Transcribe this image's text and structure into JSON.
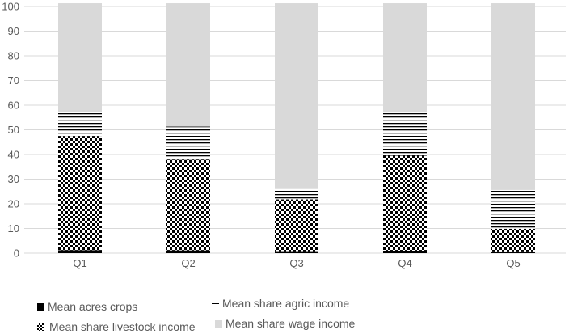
{
  "chart_data": {
    "type": "bar",
    "stacked": true,
    "title": "",
    "xlabel": "",
    "ylabel": "",
    "ylim": [
      0,
      100
    ],
    "yticks": [
      0,
      10,
      20,
      30,
      40,
      50,
      60,
      70,
      80,
      90,
      100
    ],
    "grid": true,
    "legend_position": "bottom",
    "categories": [
      "Q1",
      "Q2",
      "Q3",
      "Q4",
      "Q5"
    ],
    "series": [
      {
        "name": "Mean acres crops",
        "pattern": "solid-black",
        "values": [
          1.2,
          1.1,
          0.8,
          1.0,
          0.7
        ]
      },
      {
        "name": "Mean share livestock income",
        "pattern": "checkerboard",
        "values": [
          46.3,
          36.8,
          21.0,
          38.5,
          9.2
        ]
      },
      {
        "name": "Mean share agric income",
        "pattern": "horizontal-lines",
        "values": [
          9.8,
          13.4,
          4.2,
          17.5,
          15.7
        ]
      },
      {
        "name": "Mean share wage income",
        "pattern": "solid-light-gray",
        "values": [
          44.0,
          50.0,
          75.3,
          44.3,
          75.7
        ]
      }
    ]
  },
  "legend": {
    "items": [
      {
        "label": "Mean acres crops"
      },
      {
        "label": "Mean share agric income"
      },
      {
        "label": "Mean share livestock income"
      },
      {
        "label": "Mean share wage income"
      }
    ]
  },
  "colors": {
    "wage": "#d9d9d9",
    "black": "#000000",
    "grid": "#d9d9d9",
    "text": "#595959"
  }
}
